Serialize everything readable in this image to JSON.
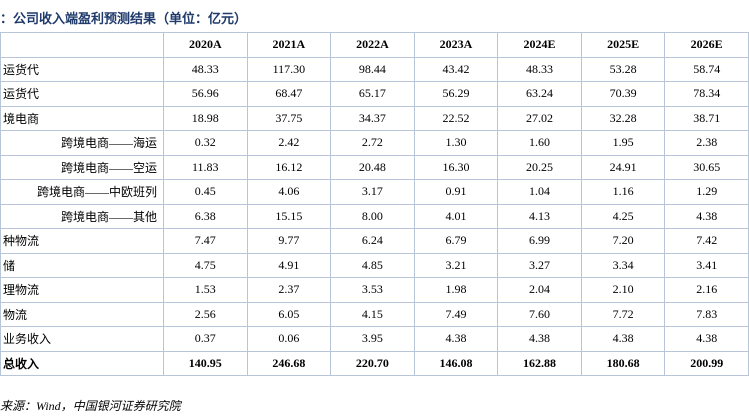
{
  "header": {
    "title": "：公司收入端盈利预测结果（单位：亿元）"
  },
  "table": {
    "columns": [
      "2020A",
      "2021A",
      "2022A",
      "2023A",
      "2024E",
      "2025E",
      "2026E"
    ],
    "rows": [
      [
        "运货代",
        "48.33",
        "117.30",
        "98.44",
        "43.42",
        "48.33",
        "53.28",
        "58.74"
      ],
      [
        "运货代",
        "56.96",
        "68.47",
        "65.17",
        "56.29",
        "63.24",
        "70.39",
        "78.34"
      ],
      [
        "境电商",
        "18.98",
        "37.75",
        "34.37",
        "22.52",
        "27.02",
        "32.28",
        "38.71"
      ],
      [
        "跨境电商——海运",
        "0.32",
        "2.42",
        "2.72",
        "1.30",
        "1.60",
        "1.95",
        "2.38"
      ],
      [
        "跨境电商——空运",
        "11.83",
        "16.12",
        "20.48",
        "16.30",
        "20.25",
        "24.91",
        "30.65"
      ],
      [
        "跨境电商——中欧班列",
        "0.45",
        "4.06",
        "3.17",
        "0.91",
        "1.04",
        "1.16",
        "1.29"
      ],
      [
        "跨境电商——其他",
        "6.38",
        "15.15",
        "8.00",
        "4.01",
        "4.13",
        "4.25",
        "4.38"
      ],
      [
        "种物流",
        "7.47",
        "9.77",
        "6.24",
        "6.79",
        "6.99",
        "7.20",
        "7.42"
      ],
      [
        "储",
        "4.75",
        "4.91",
        "4.85",
        "3.21",
        "3.27",
        "3.34",
        "3.41"
      ],
      [
        "理物流",
        "1.53",
        "2.37",
        "3.53",
        "1.98",
        "2.04",
        "2.10",
        "2.16"
      ],
      [
        "物流",
        "2.56",
        "6.05",
        "4.15",
        "7.49",
        "7.60",
        "7.72",
        "7.83"
      ],
      [
        "业务收入",
        "0.37",
        "0.06",
        "3.95",
        "4.38",
        "4.38",
        "4.38",
        "4.38"
      ],
      [
        "总收入",
        "140.95",
        "246.68",
        "220.70",
        "146.08",
        "162.88",
        "180.68",
        "200.99"
      ]
    ]
  },
  "footer": {
    "source": "来源：Wind，中国银河证券研究院"
  }
}
